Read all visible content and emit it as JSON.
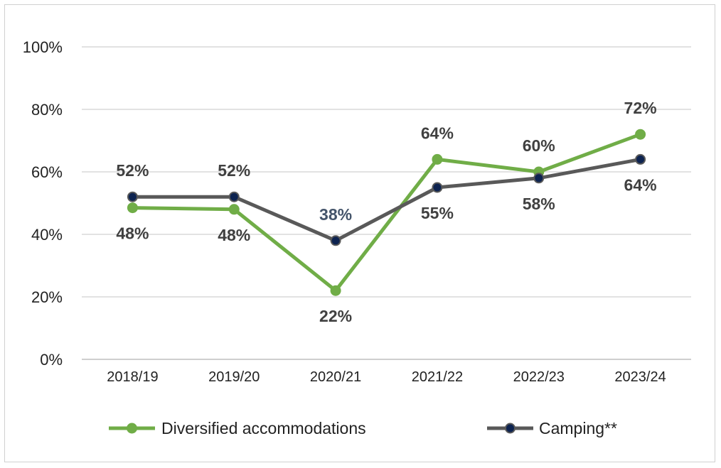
{
  "chart_data": {
    "type": "line",
    "categories": [
      "2018/19",
      "2019/20",
      "2020/21",
      "2021/22",
      "2022/23",
      "2023/24"
    ],
    "ylim": [
      0,
      100
    ],
    "yticks": [
      0,
      20,
      40,
      60,
      80,
      100
    ],
    "ytick_labels": [
      "0%",
      "20%",
      "40%",
      "60%",
      "80%",
      "100%"
    ],
    "grid": true,
    "legend_position": "bottom",
    "series": [
      {
        "name": "Diversified accommodations",
        "values": [
          48.5,
          48,
          22,
          64,
          60,
          72
        ],
        "labels": [
          "48%",
          "48%",
          "22%",
          "64%",
          "60%",
          "72%"
        ],
        "label_positions": [
          "below",
          "below",
          "below",
          "above",
          "above",
          "above"
        ],
        "line_color": "#70ad47",
        "marker_color": "#70ad47",
        "label_color": "#404040"
      },
      {
        "name": "Camping**",
        "values": [
          52,
          52,
          38,
          55,
          58,
          64
        ],
        "labels": [
          "52%",
          "52%",
          "38%",
          "55%",
          "58%",
          "64%"
        ],
        "label_positions": [
          "above",
          "above",
          "above",
          "below",
          "below",
          "below"
        ],
        "line_color": "#595959",
        "marker_color": "#0d2350",
        "label_color": "#404040",
        "special_label_color": {
          "index": 2,
          "color": "#44546a"
        }
      }
    ]
  }
}
